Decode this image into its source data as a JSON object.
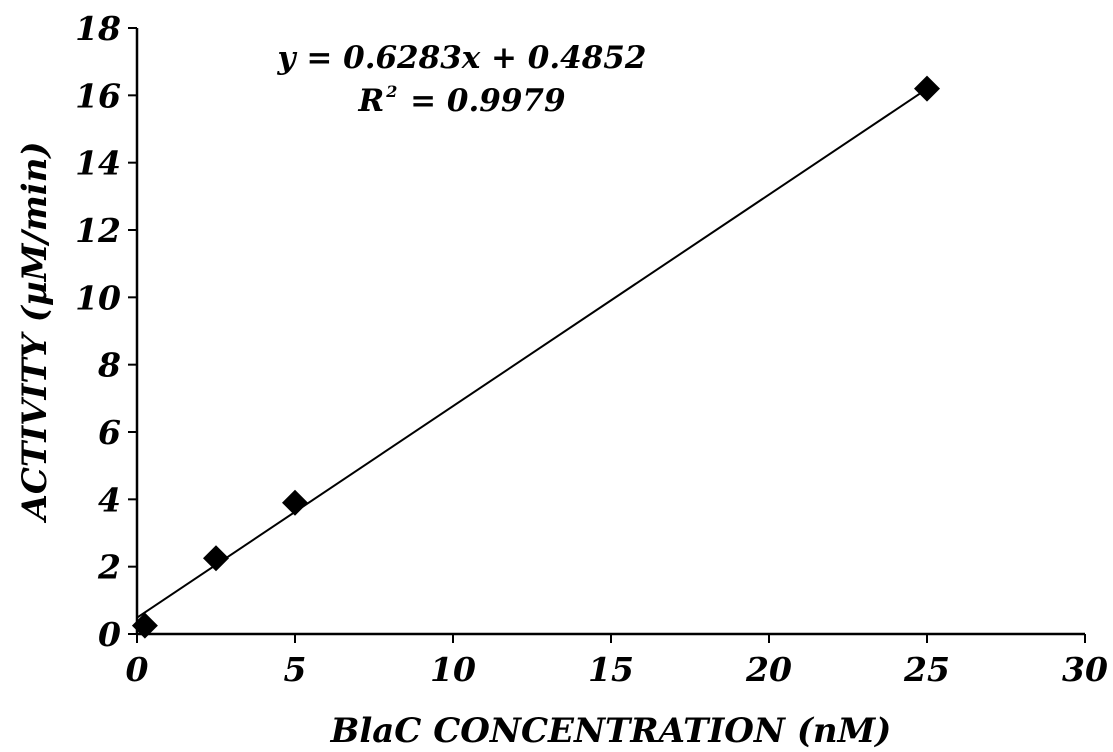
{
  "chart_data": {
    "type": "scatter",
    "title": "",
    "xlabel": "BlaC CONCENTRATION (nM)",
    "ylabel": "ACTIVITY (µM/min)",
    "xlim": [
      0,
      30
    ],
    "ylim": [
      0,
      18
    ],
    "x_ticks": [
      0,
      5,
      10,
      15,
      20,
      25,
      30
    ],
    "y_ticks": [
      0,
      2,
      4,
      6,
      8,
      10,
      12,
      14,
      16,
      18
    ],
    "x_tick_labels": [
      "0",
      "5",
      "10",
      "15",
      "20",
      "25",
      "30"
    ],
    "y_tick_labels": [
      "0",
      "2",
      "4",
      "6",
      "8",
      "10",
      "12",
      "14",
      "16",
      "18"
    ],
    "grid": false,
    "marker": "diamond",
    "marker_color": "#000000",
    "series": [
      {
        "x": [
          0.25,
          2.5,
          5,
          25
        ],
        "y": [
          0.25,
          2.25,
          3.9,
          16.2
        ]
      }
    ],
    "trendline": {
      "slope": 0.6283,
      "intercept": 0.4852,
      "x_range": [
        0,
        25
      ],
      "color": "#000000"
    },
    "annotations": {
      "equation": "y = 0.6283x + 0.4852",
      "r2_label": "R",
      "r2_superscript": "2",
      "r2_value": " = 0.9979"
    }
  }
}
